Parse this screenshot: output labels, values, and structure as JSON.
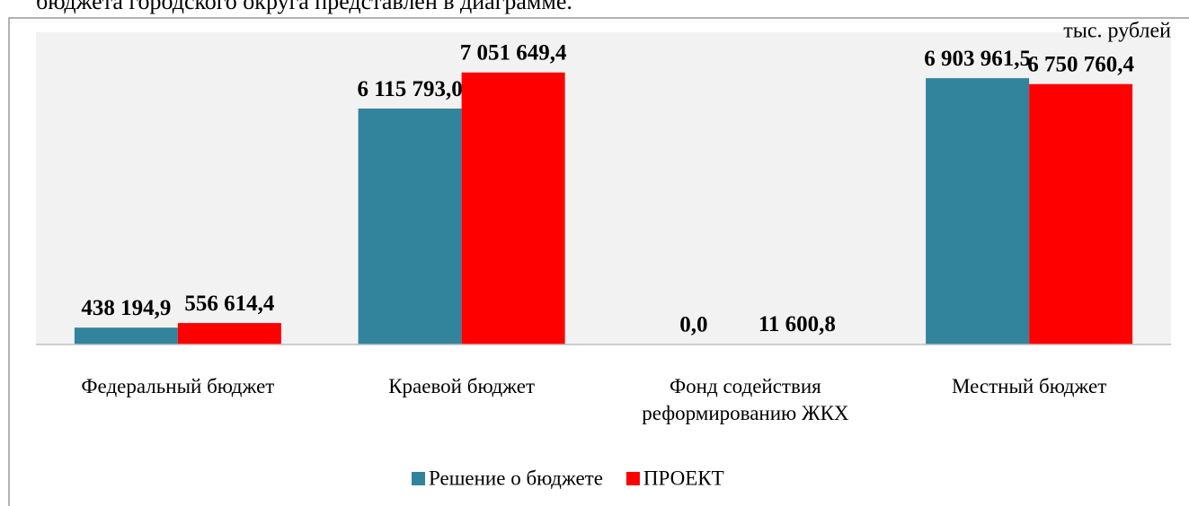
{
  "chart_data": {
    "type": "bar",
    "caption": "бюджета городского округа представлен в диаграмме.",
    "units": "тыс. рублей",
    "categories": [
      "Федеральный бюджет",
      "Краевой бюджет",
      "Фонд содействия реформированию ЖКХ",
      "Местный бюджет"
    ],
    "series": [
      {
        "name": "Решение о бюджете",
        "color": "#31849b",
        "values": [
          438194.9,
          6115793.0,
          0.0,
          6903961.5
        ],
        "value_labels": [
          "438 194,9",
          "6 115 793,0",
          "0,0",
          "6 903 961,5"
        ]
      },
      {
        "name": "ПРОЕКТ",
        "color": "#ff0000",
        "values": [
          556614.4,
          7051649.4,
          11600.8,
          6750760.4
        ],
        "value_labels": [
          "556 614,4",
          "7 051 649,4",
          "11 600,8",
          "6 750 760,4"
        ]
      }
    ],
    "ylim": [
      0,
      8000000
    ]
  }
}
